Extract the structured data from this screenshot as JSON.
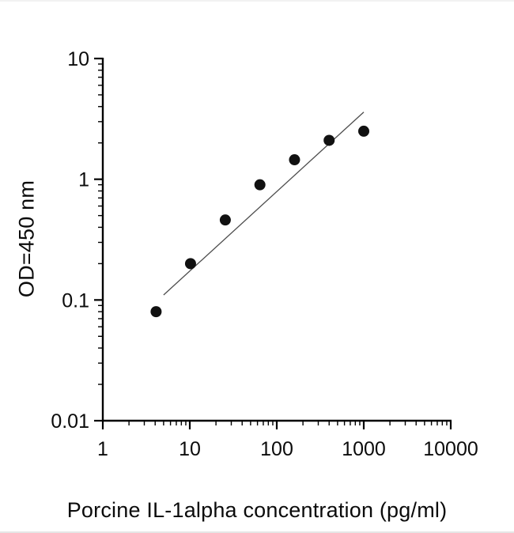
{
  "figure": {
    "kind": "log-log standard curve scatter plot"
  },
  "chart_data": {
    "type": "scatter",
    "title": "",
    "xlabel": "Porcine IL-1alpha concentration (pg/ml)",
    "ylabel": "OD=450 nm",
    "x_scale": "log",
    "y_scale": "log",
    "xlim": [
      1,
      10000
    ],
    "ylim": [
      0.01,
      10
    ],
    "x_ticks": [
      1,
      10,
      100,
      1000,
      10000
    ],
    "x_tick_labels": [
      "1",
      "10",
      "100",
      "1000",
      "10000"
    ],
    "y_ticks": [
      0.01,
      0.1,
      1,
      10
    ],
    "y_tick_labels": [
      "0.01",
      "0.1",
      "1",
      "10"
    ],
    "grid": false,
    "legend": false,
    "points": [
      {
        "x": 4.1,
        "y": 0.08
      },
      {
        "x": 10.2,
        "y": 0.2
      },
      {
        "x": 25.6,
        "y": 0.46
      },
      {
        "x": 64,
        "y": 0.9
      },
      {
        "x": 160,
        "y": 1.45
      },
      {
        "x": 400,
        "y": 2.1
      },
      {
        "x": 1000,
        "y": 2.5
      }
    ],
    "fit_line": {
      "x1": 5,
      "y1": 0.11,
      "x2": 1000,
      "y2": 3.6
    },
    "marker_color": "#111111",
    "line_color": "#4d4d4d",
    "axis_color": "#000000",
    "text_color": "#0b0b0b"
  }
}
